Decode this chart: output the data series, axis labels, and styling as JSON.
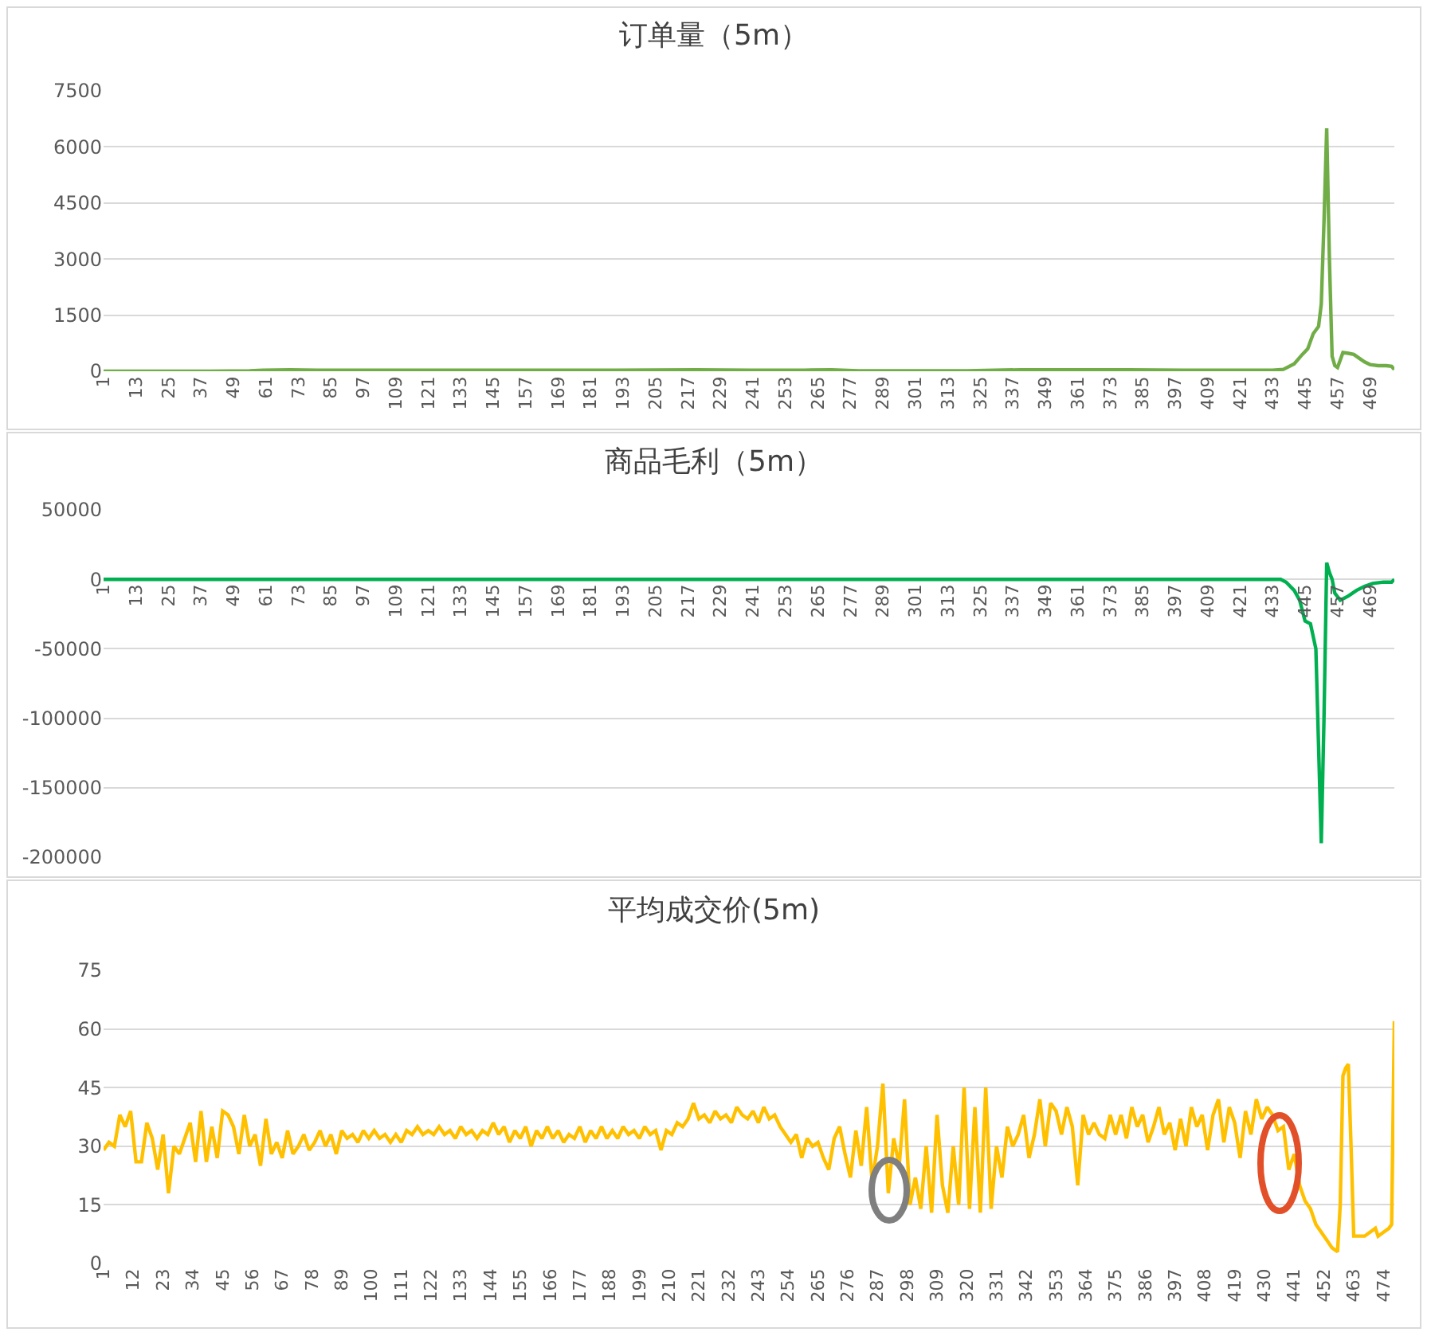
{
  "chart_data": [
    {
      "type": "line",
      "title": "订单量（5m）",
      "xlim": [
        1,
        478
      ],
      "xticks": [
        1,
        13,
        25,
        37,
        49,
        61,
        73,
        85,
        97,
        109,
        121,
        133,
        145,
        157,
        169,
        181,
        193,
        205,
        217,
        229,
        241,
        253,
        265,
        277,
        289,
        301,
        313,
        325,
        337,
        349,
        361,
        373,
        385,
        397,
        409,
        421,
        433,
        445,
        457,
        469
      ],
      "ylim": [
        0,
        7500
      ],
      "yticks": [
        0,
        1500,
        3000,
        4500,
        6000,
        7500
      ],
      "grid": "y",
      "series": [
        {
          "color": "#70ad47",
          "x": [
            1,
            20,
            40,
            55,
            60,
            70,
            80,
            100,
            130,
            160,
            190,
            220,
            240,
            260,
            270,
            280,
            300,
            320,
            340,
            360,
            380,
            400,
            420,
            433,
            437,
            441,
            444,
            446,
            448,
            450,
            451,
            452,
            453,
            454,
            455,
            456,
            457,
            458,
            459,
            461,
            463,
            465,
            467,
            469,
            472,
            475,
            477,
            478
          ],
          "values": [
            0,
            0,
            0,
            10,
            30,
            40,
            30,
            30,
            30,
            30,
            30,
            40,
            30,
            30,
            40,
            10,
            10,
            10,
            40,
            40,
            40,
            30,
            30,
            30,
            50,
            200,
            450,
            600,
            1000,
            1200,
            1800,
            4000,
            6500,
            3000,
            400,
            150,
            100,
            300,
            500,
            480,
            450,
            350,
            250,
            180,
            150,
            150,
            130,
            50
          ]
        }
      ]
    },
    {
      "type": "line",
      "title": "商品毛利（5m）",
      "xlim": [
        1,
        478
      ],
      "xticks": [
        1,
        13,
        25,
        37,
        49,
        61,
        73,
        85,
        97,
        109,
        121,
        133,
        145,
        157,
        169,
        181,
        193,
        205,
        217,
        229,
        241,
        253,
        265,
        277,
        289,
        301,
        313,
        325,
        337,
        349,
        361,
        373,
        385,
        397,
        409,
        421,
        433,
        445,
        457,
        469
      ],
      "ylim": [
        -200000,
        50000
      ],
      "yticks": [
        -200000,
        -150000,
        -100000,
        -50000,
        0,
        50000
      ],
      "grid": "y",
      "series": [
        {
          "color": "#00b050",
          "x": [
            1,
            100,
            200,
            300,
            400,
            436,
            438,
            441,
            443,
            445,
            447,
            449,
            451,
            452,
            453,
            454,
            455,
            456,
            458,
            461,
            464,
            467,
            470,
            474,
            477,
            478
          ],
          "values": [
            0,
            0,
            0,
            0,
            0,
            0,
            -2000,
            -8000,
            -15000,
            -30000,
            -32000,
            -50000,
            -190000,
            -100000,
            12000,
            5000,
            0,
            -10000,
            -15000,
            -12000,
            -8000,
            -5000,
            -3000,
            -2000,
            -2000,
            0
          ]
        }
      ]
    },
    {
      "type": "line",
      "title": "平均成交价(5m)",
      "xlim": [
        1,
        478
      ],
      "xticks": [
        1,
        12,
        23,
        34,
        45,
        56,
        67,
        78,
        89,
        100,
        111,
        122,
        133,
        144,
        155,
        166,
        177,
        188,
        199,
        210,
        221,
        232,
        243,
        254,
        265,
        276,
        287,
        298,
        309,
        320,
        331,
        342,
        353,
        364,
        375,
        386,
        397,
        408,
        419,
        430,
        441,
        452,
        463,
        474
      ],
      "ylim": [
        0,
        75
      ],
      "yticks": [
        0,
        15,
        30,
        45,
        60,
        75
      ],
      "grid": "y",
      "series": [
        {
          "color": "#ffc000",
          "x": [
            1,
            3,
            5,
            7,
            9,
            11,
            13,
            15,
            17,
            19,
            21,
            23,
            25,
            27,
            29,
            31,
            33,
            35,
            37,
            39,
            41,
            43,
            45,
            47,
            49,
            51,
            53,
            55,
            57,
            59,
            61,
            63,
            65,
            67,
            69,
            71,
            73,
            75,
            77,
            79,
            81,
            83,
            85,
            87,
            89,
            91,
            93,
            95,
            97,
            99,
            101,
            103,
            105,
            107,
            109,
            111,
            113,
            115,
            117,
            119,
            121,
            123,
            125,
            127,
            129,
            131,
            133,
            135,
            137,
            139,
            141,
            143,
            145,
            147,
            149,
            151,
            153,
            155,
            157,
            159,
            161,
            163,
            165,
            167,
            169,
            171,
            173,
            175,
            177,
            179,
            181,
            183,
            185,
            187,
            189,
            191,
            193,
            195,
            197,
            199,
            201,
            203,
            205,
            207,
            209,
            211,
            213,
            215,
            217,
            219,
            221,
            223,
            225,
            227,
            229,
            231,
            233,
            235,
            237,
            239,
            241,
            243,
            245,
            247,
            249,
            251,
            253,
            255,
            257,
            259,
            261,
            263,
            265,
            267,
            269,
            271,
            273,
            275,
            277,
            279,
            281,
            283,
            285,
            287,
            289,
            291,
            293,
            295,
            297,
            299,
            301,
            303,
            305,
            307,
            309,
            311,
            313,
            315,
            317,
            319,
            321,
            323,
            325,
            327,
            329,
            331,
            333,
            335,
            337,
            339,
            341,
            343,
            345,
            347,
            349,
            351,
            353,
            355,
            357,
            359,
            361,
            363,
            365,
            367,
            369,
            371,
            373,
            375,
            377,
            379,
            381,
            383,
            385,
            387,
            389,
            391,
            393,
            395,
            397,
            399,
            401,
            403,
            405,
            407,
            409,
            411,
            413,
            415,
            417,
            419,
            421,
            423,
            425,
            427,
            429,
            431,
            433,
            435,
            437,
            439,
            441,
            443,
            445,
            447,
            449,
            451,
            453,
            455,
            457,
            458,
            459,
            460,
            461,
            462,
            463,
            465,
            467,
            469,
            471,
            472,
            474,
            476,
            477,
            478
          ],
          "values": [
            29,
            31,
            30,
            38,
            35,
            39,
            26,
            26,
            36,
            32,
            24,
            33,
            18,
            30,
            28,
            32,
            36,
            26,
            39,
            26,
            35,
            27,
            39,
            38,
            35,
            28,
            38,
            30,
            33,
            25,
            37,
            28,
            31,
            27,
            34,
            28,
            30,
            33,
            29,
            31,
            34,
            30,
            33,
            28,
            34,
            32,
            33,
            31,
            34,
            32,
            34,
            32,
            33,
            31,
            33,
            31,
            34,
            33,
            35,
            33,
            34,
            33,
            35,
            33,
            34,
            32,
            35,
            33,
            34,
            32,
            34,
            33,
            36,
            33,
            35,
            31,
            34,
            32,
            35,
            30,
            34,
            32,
            35,
            32,
            34,
            31,
            33,
            32,
            35,
            31,
            34,
            32,
            35,
            32,
            34,
            32,
            35,
            33,
            34,
            32,
            35,
            33,
            34,
            29,
            34,
            33,
            36,
            35,
            37,
            41,
            37,
            38,
            36,
            39,
            37,
            38,
            36,
            40,
            38,
            37,
            39,
            36,
            40,
            37,
            38,
            35,
            33,
            31,
            33,
            27,
            32,
            30,
            31,
            27,
            24,
            32,
            35,
            28,
            22,
            34,
            25,
            40,
            21,
            30,
            46,
            18,
            32,
            25,
            42,
            15,
            22,
            14,
            30,
            13,
            38,
            20,
            13,
            30,
            15,
            45,
            14,
            40,
            13,
            45,
            14,
            30,
            22,
            35,
            30,
            33,
            38,
            27,
            33,
            42,
            30,
            41,
            39,
            33,
            40,
            35,
            20,
            38,
            33,
            36,
            33,
            32,
            38,
            33,
            38,
            32,
            40,
            35,
            38,
            31,
            35,
            40,
            33,
            36,
            29,
            37,
            30,
            40,
            35,
            38,
            29,
            38,
            42,
            31,
            40,
            36,
            27,
            39,
            33,
            42,
            37,
            40,
            38,
            34,
            35,
            24,
            28,
            20,
            16,
            14,
            10,
            8,
            6,
            4,
            3,
            15,
            48,
            50,
            51,
            30,
            7,
            7,
            7,
            8,
            9,
            7,
            8,
            9,
            10,
            62
          ]
        }
      ]
    }
  ]
}
